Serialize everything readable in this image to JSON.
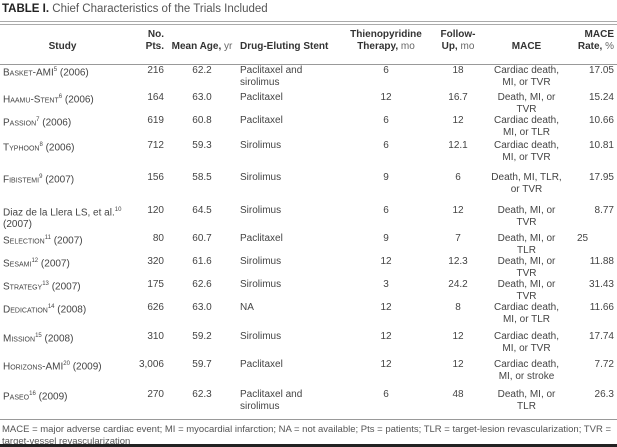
{
  "title": {
    "label": "TABLE I.",
    "text": "Chief Characteristics of the Trials Included"
  },
  "headers": [
    {
      "main": "Study",
      "unit": ""
    },
    {
      "main": "No. Pts.",
      "unit": ""
    },
    {
      "main": "Mean Age,",
      "unit": "yr"
    },
    {
      "main": "Drug-Eluting Stent",
      "unit": ""
    },
    {
      "main": "Thienopyridine Therapy,",
      "unit": "mo"
    },
    {
      "main": "Follow-Up,",
      "unit": "mo"
    },
    {
      "main": "MACE",
      "unit": ""
    },
    {
      "main": "MACE Rate,",
      "unit": "%"
    }
  ],
  "rows": [
    {
      "study": "Basket-AMI",
      "ref": "5",
      "year": "(2006)",
      "pts": "216",
      "age": "62.2",
      "stent": "Paclitaxel and sirolimus",
      "thieno": "6",
      "follow": "18",
      "mace": "Cardiac death, MI, or TVR",
      "rate": "17.05"
    },
    {
      "study": "Haamu-Stent",
      "ref": "6",
      "year": "(2006)",
      "pts": "164",
      "age": "63.0",
      "stent": "Paclitaxel",
      "thieno": "12",
      "follow": "16.7",
      "mace": "Death, MI, or TVR",
      "rate": "15.24"
    },
    {
      "study": "Passion",
      "ref": "7",
      "year": "(2006)",
      "pts": "619",
      "age": "60.8",
      "stent": "Paclitaxel",
      "thieno": "6",
      "follow": "12",
      "mace": "Cardiac death, MI, or TLR",
      "rate": "10.66"
    },
    {
      "study": "Typhoon",
      "ref": "8",
      "year": "(2006)",
      "pts": "712",
      "age": "59.3",
      "stent": "Sirolimus",
      "thieno": "6",
      "follow": "12.1",
      "mace": "Cardiac death, MI, or TVR",
      "rate": "10.81"
    },
    {
      "study": "Fibistemi",
      "ref": "9",
      "year": "(2007)",
      "pts": "156",
      "age": "58.5",
      "stent": "Sirolimus",
      "thieno": "9",
      "follow": "6",
      "mace": "Death, MI, TLR, or TVR",
      "rate": "17.95"
    },
    {
      "study": "Diaz de la Llera LS, et al.",
      "ref": "10",
      "year": "(2007)",
      "plain": true,
      "pts": "120",
      "age": "64.5",
      "stent": "Sirolimus",
      "thieno": "6",
      "follow": "12",
      "mace": "Death, MI, or TVR",
      "rate": "8.77"
    },
    {
      "study": "Selection",
      "ref": "11",
      "year": "(2007)",
      "pts": "80",
      "age": "60.7",
      "stent": "Paclitaxel",
      "thieno": "9",
      "follow": "7",
      "mace": "Death, MI, or TLR",
      "rate": "25"
    },
    {
      "study": "Sesami",
      "ref": "12",
      "year": "(2007)",
      "pts": "320",
      "age": "61.6",
      "stent": "Sirolimus",
      "thieno": "12",
      "follow": "12.3",
      "mace": "Death, MI, or TVR",
      "rate": "11.88"
    },
    {
      "study": "Strategy",
      "ref": "13",
      "year": "(2007)",
      "pts": "175",
      "age": "62.6",
      "stent": "Sirolimus",
      "thieno": "3",
      "follow": "24.2",
      "mace": "Death, MI, or TVR",
      "rate": "31.43"
    },
    {
      "study": "Dedication",
      "ref": "14",
      "year": "(2008)",
      "pts": "626",
      "age": "63.0",
      "stent": "NA",
      "thieno": "12",
      "follow": "8",
      "mace": "Cardiac death, MI, or TLR",
      "rate": "11.66"
    },
    {
      "study": "Mission",
      "ref": "15",
      "year": "(2008)",
      "pts": "310",
      "age": "59.2",
      "stent": "Sirolimus",
      "thieno": "12",
      "follow": "12",
      "mace": "Cardiac death, MI, or TVR",
      "rate": "17.74"
    },
    {
      "study": "Horizons-AMI",
      "ref": "20",
      "year": "(2009)",
      "pts": "3,006",
      "age": "59.7",
      "stent": "Paclitaxel",
      "thieno": "12",
      "follow": "12",
      "mace": "Cardiac death, MI, or stroke",
      "rate": "7.72"
    },
    {
      "study": "Paseo",
      "ref": "16",
      "year": "(2009)",
      "pts": "270",
      "age": "62.3",
      "stent": "Paclitaxel and sirolimus",
      "thieno": "6",
      "follow": "48",
      "mace": "Death, MI, or TLR",
      "rate": "26.3"
    }
  ],
  "footnote": "MACE = major adverse cardiac event; MI = myocardial infarction; NA = not available; Pts = patients; TLR = target-lesion revascularization; TVR = target-vessel revascularization"
}
